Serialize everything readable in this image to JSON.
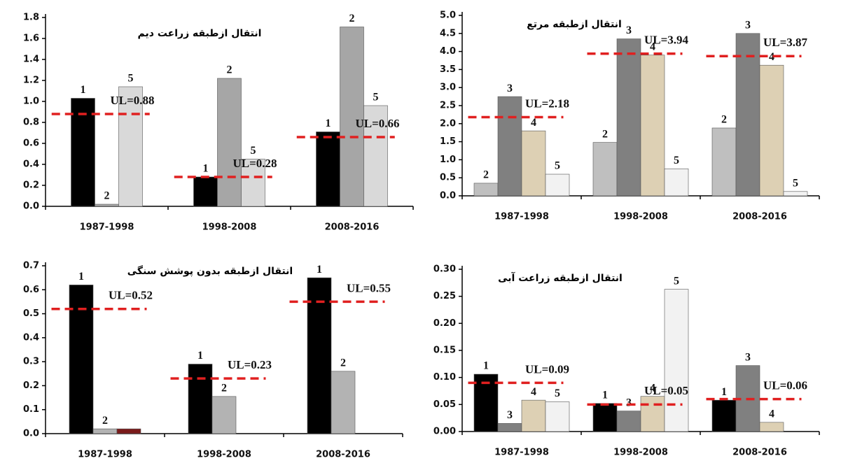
{
  "chart_data": [
    {
      "type": "bar",
      "title": "انتقال ازطبقه زراعت دیم",
      "categories": [
        "1987-1998",
        "1998-2008",
        "2008-2016"
      ],
      "series": [
        {
          "name": "1",
          "color": "#000000",
          "values": [
            1.03,
            0.28,
            0.71
          ]
        },
        {
          "name": "2",
          "color": "#a6a6a6",
          "values": [
            0.02,
            1.22,
            1.71
          ]
        },
        {
          "name": "5",
          "color": "#d9d9d9",
          "values": [
            1.14,
            0.45,
            0.96
          ]
        }
      ],
      "ul": {
        "values": [
          0.88,
          0.28,
          0.66
        ],
        "value_labels": [
          "UL=0.88",
          "UL=0.28",
          "UL=0.66"
        ]
      },
      "ylim": [
        0,
        1.8
      ],
      "yticks": [
        {
          "value": 0,
          "label": "0.0"
        },
        0.2,
        0.4,
        0.6,
        0.8,
        {
          "value": 1,
          "label": "1.0"
        },
        1.2,
        1.4,
        1.6,
        1.8
      ],
      "grid": false
    },
    {
      "type": "bar",
      "title": "انتقال ازطبقه مرتع",
      "categories": [
        "1987-1998",
        "1998-2008",
        "2008-2016"
      ],
      "series": [
        {
          "name": "2",
          "color": "#bfbfbf",
          "values": [
            0.35,
            1.48,
            1.88
          ]
        },
        {
          "name": "3",
          "color": "#808080",
          "values": [
            2.75,
            4.35,
            4.5
          ]
        },
        {
          "name": "4",
          "color": "#ddd0b4",
          "values": [
            1.8,
            3.9,
            3.62
          ]
        },
        {
          "name": "5",
          "color": "#f2f2f2",
          "values": [
            0.6,
            0.75,
            0.12
          ]
        }
      ],
      "ul": {
        "values": [
          2.18,
          3.94,
          3.87
        ],
        "value_labels": [
          "UL=2.18",
          "UL=3.94",
          "UL=3.87"
        ]
      },
      "ylim": [
        0,
        5
      ],
      "yticks": [
        {
          "value": 0,
          "label": "0.0"
        },
        0.5,
        {
          "value": 1,
          "label": "1.0"
        },
        1.5,
        {
          "value": 2,
          "label": "2.0"
        },
        2.5,
        {
          "value": 3,
          "label": "3.0"
        },
        3.5,
        {
          "value": 4,
          "label": "4.0"
        },
        4.5,
        {
          "value": 5,
          "label": "5.0"
        }
      ],
      "grid": false
    },
    {
      "type": "bar",
      "title": "انتقال ازطبقه بدون پوشش سنگی",
      "categories": [
        "1987-1998",
        "1998-2008",
        "2008-2016"
      ],
      "series": [
        {
          "name": "1",
          "color": "#000000",
          "values": [
            0.62,
            0.29,
            0.65
          ]
        },
        {
          "name": "2",
          "color": "#b3b3b3",
          "values": [
            0.02,
            0.155,
            0.26
          ]
        },
        {
          "color": "#7a1a1a",
          "values": [
            0.02,
            null,
            null
          ]
        }
      ],
      "ul": {
        "values": [
          0.52,
          0.23,
          0.55
        ],
        "value_labels": [
          "UL=0.52",
          "UL=0.23",
          "UL=0.55"
        ]
      },
      "ylim": [
        0,
        0.7
      ],
      "yticks": [
        {
          "value": 0,
          "label": "0.0"
        },
        0.1,
        0.2,
        0.3,
        0.4,
        0.5,
        0.6,
        0.7
      ],
      "grid": false
    },
    {
      "type": "bar",
      "title": "انتقال ازطبقه زراعت آبی",
      "categories": [
        "1987-1998",
        "1998-2008",
        "2008-2016"
      ],
      "series": [
        {
          "name": "1",
          "color": "#000000",
          "values": [
            0.106,
            0.052,
            0.058
          ]
        },
        {
          "name": "3",
          "color": "#808080",
          "values": [
            0.015,
            0.038,
            0.122
          ]
        },
        {
          "name": "4",
          "color": "#ddd0b4",
          "values": [
            0.058,
            0.065,
            0.017
          ]
        },
        {
          "name": "5",
          "color": "#f2f2f2",
          "values": [
            0.055,
            0.263,
            null
          ]
        }
      ],
      "ul": {
        "values": [
          0.09,
          0.05,
          0.06
        ],
        "value_labels": [
          "UL=0.09",
          "UL=0.05",
          "UL=0.06"
        ]
      },
      "ylim": [
        0,
        0.3
      ],
      "yticks": [
        {
          "value": 0,
          "label": "0.00"
        },
        0.05,
        {
          "value": 0.1,
          "label": "0.10"
        },
        0.15,
        {
          "value": 0.2,
          "label": "0.20"
        },
        0.25,
        {
          "value": 0.3,
          "label": "0.30"
        }
      ],
      "grid": false
    }
  ]
}
